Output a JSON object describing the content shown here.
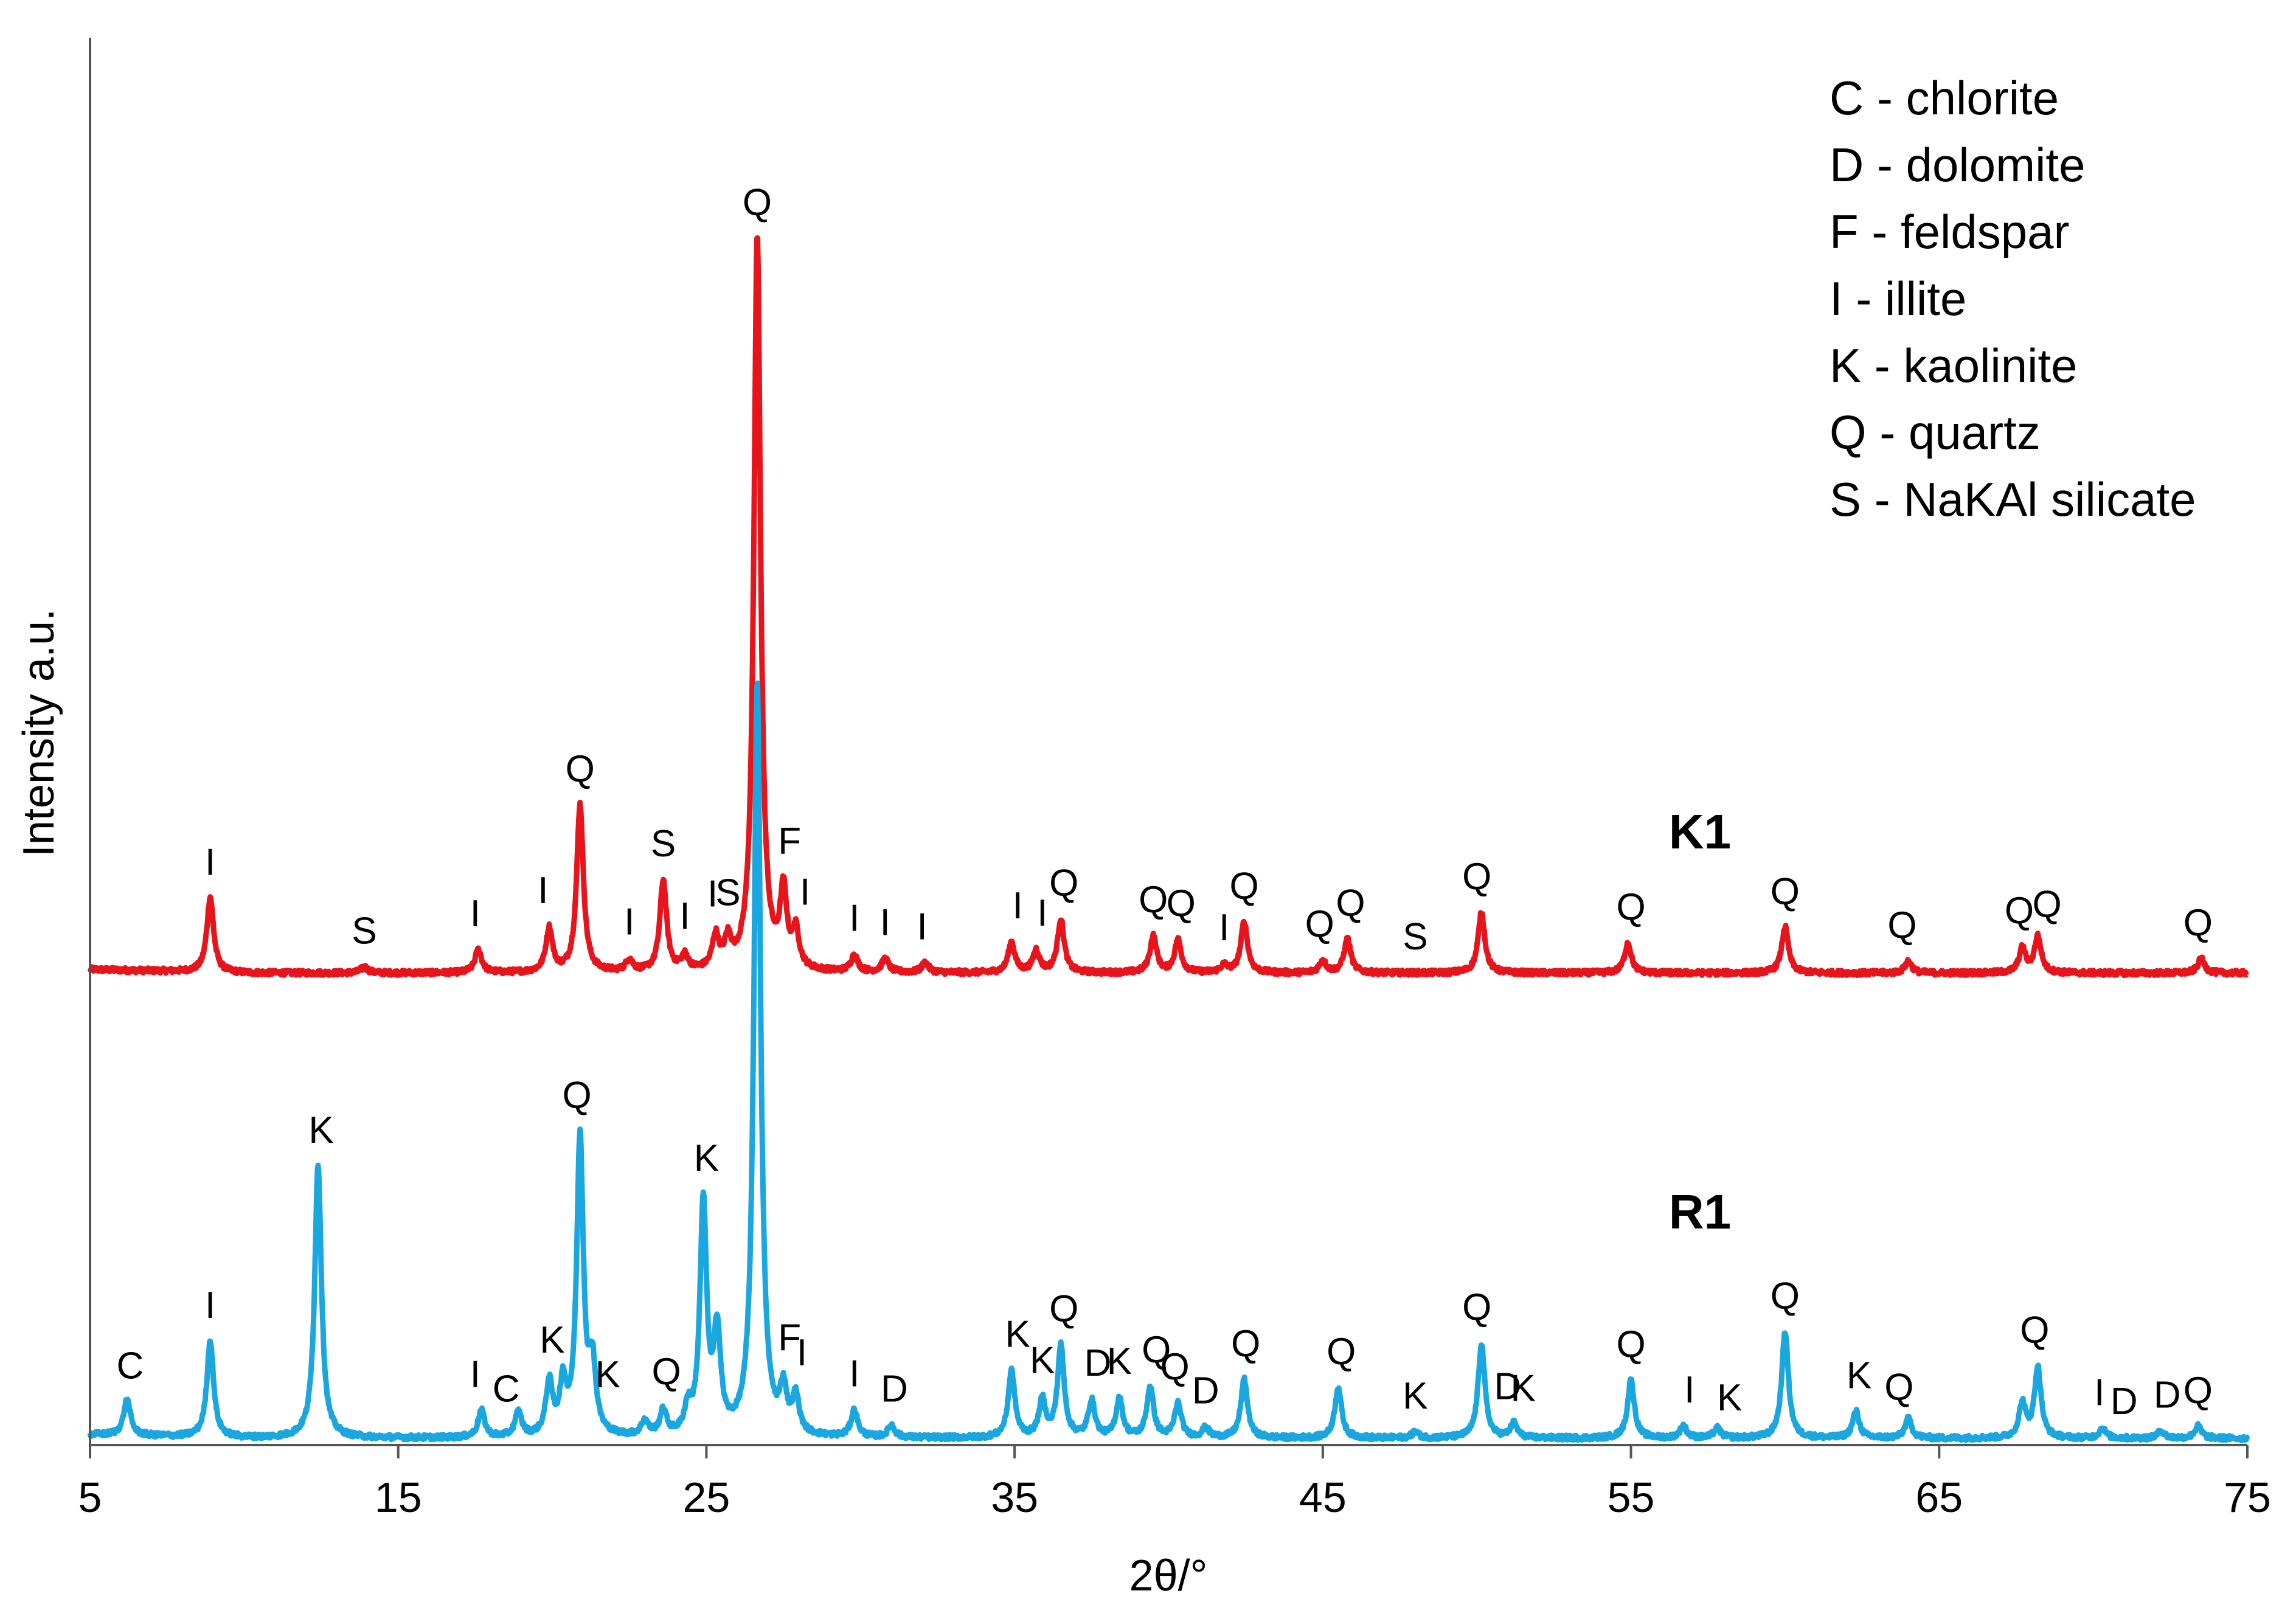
{
  "chart_data": {
    "type": "line",
    "title": "",
    "xlabel": "2θ/°",
    "ylabel": "Intensity a.u.",
    "xlim": [
      5,
      75
    ],
    "xticks": [
      5,
      15,
      25,
      35,
      45,
      55,
      65,
      75
    ],
    "xtick_labels": [
      "5",
      "15",
      "25",
      "35",
      "45",
      "55",
      "65",
      "75"
    ],
    "grid": false,
    "legend": {
      "position": "top-right",
      "entries": [
        "C - chlorite",
        "D - dolomite",
        "F - feldspar",
        "I - illite",
        "K - kaolinite",
        "Q - quartz",
        "S - NaKAl silicate"
      ]
    },
    "series": [
      {
        "name": "K1",
        "color": "#e8141b",
        "baseline": 0.3,
        "peaks": [
          {
            "x": 8.9,
            "h": 0.62
          },
          {
            "x": 13.9,
            "h": 0.05
          },
          {
            "x": 17.6,
            "h": 0.19
          },
          {
            "x": 19.9,
            "h": 0.36
          },
          {
            "x": 20.9,
            "h": 1.38
          },
          {
            "x": 22.5,
            "h": 0.1
          },
          {
            "x": 23.6,
            "h": 0.75
          },
          {
            "x": 24.3,
            "h": 0.12
          },
          {
            "x": 25.3,
            "h": 0.27
          },
          {
            "x": 25.7,
            "h": 0.22
          },
          {
            "x": 26.65,
            "h": 6.05
          },
          {
            "x": 27.5,
            "h": 0.62
          },
          {
            "x": 27.9,
            "h": 0.3
          },
          {
            "x": 29.8,
            "h": 0.14
          },
          {
            "x": 30.8,
            "h": 0.11
          },
          {
            "x": 32.1,
            "h": 0.08
          },
          {
            "x": 34.9,
            "h": 0.25
          },
          {
            "x": 35.7,
            "h": 0.18
          },
          {
            "x": 36.5,
            "h": 0.44
          },
          {
            "x": 39.5,
            "h": 0.3
          },
          {
            "x": 40.3,
            "h": 0.27
          },
          {
            "x": 41.8,
            "h": 0.06
          },
          {
            "x": 42.45,
            "h": 0.42
          },
          {
            "x": 45.0,
            "h": 0.1
          },
          {
            "x": 45.8,
            "h": 0.28
          },
          {
            "x": 50.15,
            "h": 0.5
          },
          {
            "x": 54.9,
            "h": 0.25
          },
          {
            "x": 60.0,
            "h": 0.38
          },
          {
            "x": 64.0,
            "h": 0.1
          },
          {
            "x": 67.7,
            "h": 0.2
          },
          {
            "x": 68.2,
            "h": 0.3
          },
          {
            "x": 73.5,
            "h": 0.12
          }
        ],
        "peak_labels": [
          {
            "x": 8.9,
            "text": "I"
          },
          {
            "x": 13.9,
            "text": "S"
          },
          {
            "x": 17.5,
            "text": "I"
          },
          {
            "x": 19.7,
            "text": "I"
          },
          {
            "x": 20.9,
            "text": "Q"
          },
          {
            "x": 22.5,
            "text": "I"
          },
          {
            "x": 23.6,
            "text": "S"
          },
          {
            "x": 24.3,
            "text": "I"
          },
          {
            "x": 25.2,
            "text": "I"
          },
          {
            "x": 25.7,
            "text": "S"
          },
          {
            "x": 26.65,
            "text": "Q"
          },
          {
            "x": 27.7,
            "text": "F"
          },
          {
            "x": 28.2,
            "text": "I"
          },
          {
            "x": 29.8,
            "text": "I"
          },
          {
            "x": 30.8,
            "text": "I"
          },
          {
            "x": 32.0,
            "text": "I"
          },
          {
            "x": 35.1,
            "text": "I"
          },
          {
            "x": 35.9,
            "text": "I"
          },
          {
            "x": 36.6,
            "text": "Q"
          },
          {
            "x": 39.5,
            "text": "Q"
          },
          {
            "x": 40.4,
            "text": "Q"
          },
          {
            "x": 41.8,
            "text": "I"
          },
          {
            "x": 42.45,
            "text": "Q"
          },
          {
            "x": 44.9,
            "text": "Q"
          },
          {
            "x": 45.9,
            "text": "Q"
          },
          {
            "x": 48.0,
            "text": "S"
          },
          {
            "x": 50.0,
            "text": "Q"
          },
          {
            "x": 55.0,
            "text": "Q"
          },
          {
            "x": 60.0,
            "text": "Q"
          },
          {
            "x": 63.8,
            "text": "Q"
          },
          {
            "x": 67.6,
            "text": "Q"
          },
          {
            "x": 68.5,
            "text": "Q"
          },
          {
            "x": 73.4,
            "text": "Q"
          }
        ]
      },
      {
        "name": "R1",
        "color": "#1aa7e0",
        "baseline": 0.05,
        "peaks": [
          {
            "x": 6.2,
            "h": 0.3
          },
          {
            "x": 8.9,
            "h": 0.8
          },
          {
            "x": 12.4,
            "h": 2.25
          },
          {
            "x": 17.7,
            "h": 0.22
          },
          {
            "x": 18.9,
            "h": 0.2
          },
          {
            "x": 19.9,
            "h": 0.43
          },
          {
            "x": 20.35,
            "h": 0.4
          },
          {
            "x": 20.9,
            "h": 2.45
          },
          {
            "x": 21.3,
            "h": 0.55
          },
          {
            "x": 23.0,
            "h": 0.12
          },
          {
            "x": 23.6,
            "h": 0.2
          },
          {
            "x": 24.4,
            "h": 0.2
          },
          {
            "x": 24.9,
            "h": 1.9
          },
          {
            "x": 25.35,
            "h": 0.82
          },
          {
            "x": 26.65,
            "h": 6.2
          },
          {
            "x": 27.5,
            "h": 0.35
          },
          {
            "x": 27.9,
            "h": 0.3
          },
          {
            "x": 29.8,
            "h": 0.22
          },
          {
            "x": 31.0,
            "h": 0.1
          },
          {
            "x": 34.9,
            "h": 0.55
          },
          {
            "x": 35.9,
            "h": 0.3
          },
          {
            "x": 36.5,
            "h": 0.75
          },
          {
            "x": 37.5,
            "h": 0.3
          },
          {
            "x": 38.4,
            "h": 0.32
          },
          {
            "x": 39.4,
            "h": 0.42
          },
          {
            "x": 40.3,
            "h": 0.28
          },
          {
            "x": 41.2,
            "h": 0.08
          },
          {
            "x": 42.45,
            "h": 0.48
          },
          {
            "x": 45.5,
            "h": 0.42
          },
          {
            "x": 48.0,
            "h": 0.05
          },
          {
            "x": 50.15,
            "h": 0.78
          },
          {
            "x": 51.2,
            "h": 0.12
          },
          {
            "x": 55.0,
            "h": 0.48
          },
          {
            "x": 56.7,
            "h": 0.1
          },
          {
            "x": 57.8,
            "h": 0.08
          },
          {
            "x": 60.0,
            "h": 0.88
          },
          {
            "x": 62.3,
            "h": 0.22
          },
          {
            "x": 64.0,
            "h": 0.16
          },
          {
            "x": 67.7,
            "h": 0.28
          },
          {
            "x": 68.2,
            "h": 0.58
          },
          {
            "x": 70.3,
            "h": 0.08
          },
          {
            "x": 72.2,
            "h": 0.06
          },
          {
            "x": 73.4,
            "h": 0.1
          }
        ],
        "peak_labels": [
          {
            "x": 6.3,
            "text": "C"
          },
          {
            "x": 8.9,
            "text": "I"
          },
          {
            "x": 12.5,
            "text": "K"
          },
          {
            "x": 17.5,
            "text": "I"
          },
          {
            "x": 18.5,
            "text": "C"
          },
          {
            "x": 20.0,
            "text": "K"
          },
          {
            "x": 20.8,
            "text": "Q"
          },
          {
            "x": 21.8,
            "text": "K"
          },
          {
            "x": 23.7,
            "text": "Q"
          },
          {
            "x": 25.0,
            "text": "K"
          },
          {
            "x": 27.7,
            "text": "F"
          },
          {
            "x": 28.1,
            "text": "I"
          },
          {
            "x": 29.8,
            "text": "I"
          },
          {
            "x": 31.1,
            "text": "D"
          },
          {
            "x": 35.1,
            "text": "K"
          },
          {
            "x": 35.9,
            "text": "K"
          },
          {
            "x": 36.6,
            "text": "Q"
          },
          {
            "x": 37.7,
            "text": "D"
          },
          {
            "x": 38.4,
            "text": "K"
          },
          {
            "x": 39.6,
            "text": "Q"
          },
          {
            "x": 40.2,
            "text": "Q"
          },
          {
            "x": 41.2,
            "text": "D"
          },
          {
            "x": 42.5,
            "text": "Q"
          },
          {
            "x": 45.6,
            "text": "Q"
          },
          {
            "x": 48.0,
            "text": "K"
          },
          {
            "x": 50.0,
            "text": "Q"
          },
          {
            "x": 51.0,
            "text": "D"
          },
          {
            "x": 51.5,
            "text": "K"
          },
          {
            "x": 55.0,
            "text": "Q"
          },
          {
            "x": 56.9,
            "text": "I"
          },
          {
            "x": 58.2,
            "text": "K"
          },
          {
            "x": 60.0,
            "text": "Q"
          },
          {
            "x": 62.4,
            "text": "K"
          },
          {
            "x": 63.7,
            "text": "Q"
          },
          {
            "x": 68.1,
            "text": "Q"
          },
          {
            "x": 70.2,
            "text": "I"
          },
          {
            "x": 71.0,
            "text": "D"
          },
          {
            "x": 72.4,
            "text": "D"
          },
          {
            "x": 73.4,
            "text": "Q"
          }
        ]
      }
    ]
  }
}
